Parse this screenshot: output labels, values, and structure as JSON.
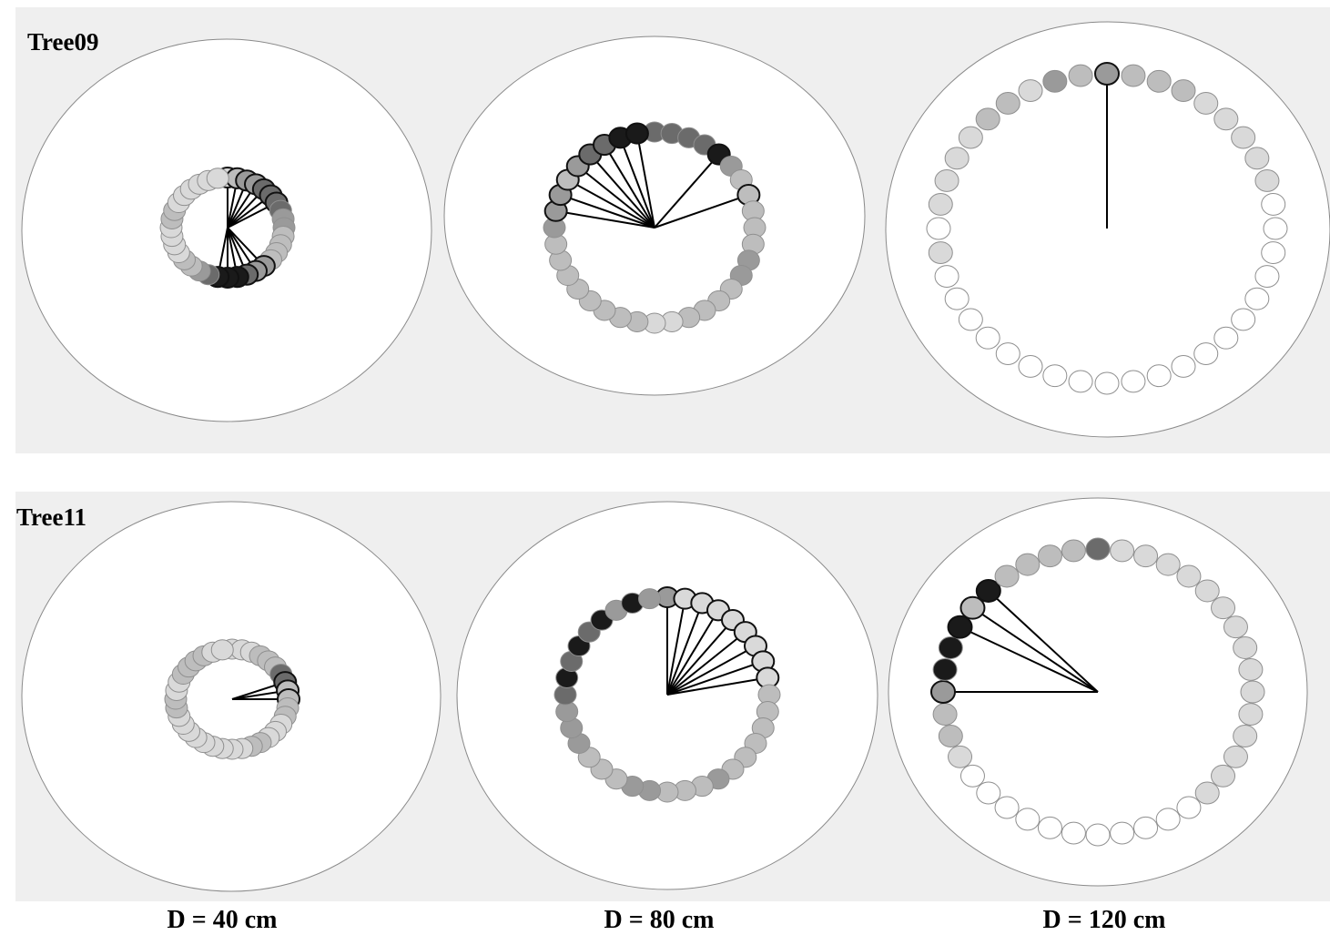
{
  "tree_labels": [
    "Tree09",
    "Tree11"
  ],
  "column_labels": [
    "D = 40 cm",
    "D = 80 cm",
    "D = 120 cm"
  ],
  "colors": {
    "panel_background": "#efefef",
    "plot_background": "#ffffff",
    "plot_border": "#8a8a8a",
    "line": "#000000"
  },
  "panels": [
    {
      "tree": "Tree09",
      "diameter": "D = 40 cm",
      "n": 36,
      "shades": [
        1,
        2,
        3,
        3,
        4,
        4,
        4,
        4,
        3,
        3,
        2,
        2,
        2,
        2,
        3,
        3,
        4,
        5,
        5,
        5,
        4,
        3,
        2,
        2,
        1,
        1,
        1,
        1,
        2,
        2,
        1,
        1,
        1,
        1,
        1,
        1
      ],
      "lines": [
        0,
        1,
        2,
        3,
        4,
        5,
        6,
        14,
        15,
        16,
        17,
        18,
        19
      ]
    },
    {
      "tree": "Tree09",
      "diameter": "D = 80 cm",
      "n": 36,
      "shades": [
        4,
        4,
        4,
        4,
        5,
        3,
        2,
        2,
        2,
        2,
        2,
        3,
        3,
        2,
        2,
        2,
        2,
        1,
        1,
        2,
        2,
        2,
        2,
        2,
        2,
        2,
        2,
        3,
        3,
        3,
        2,
        3,
        4,
        4,
        5,
        5
      ],
      "lines": [
        4,
        7,
        28,
        29,
        30,
        31,
        32,
        33,
        34,
        35
      ]
    },
    {
      "tree": "Tree09",
      "diameter": "D = 120 cm",
      "n": 40,
      "shades": [
        3,
        2,
        2,
        2,
        1,
        1,
        1,
        1,
        1,
        0,
        0,
        0,
        0,
        0,
        0,
        0,
        0,
        0,
        0,
        0,
        0,
        0,
        0,
        0,
        0,
        0,
        0,
        0,
        0,
        1,
        0,
        1,
        1,
        1,
        1,
        2,
        2,
        1,
        3,
        2
      ],
      "lines": [
        0
      ]
    },
    {
      "tree": "Tree11",
      "diameter": "D = 40 cm",
      "n": 36,
      "shades": [
        1,
        1,
        1,
        2,
        2,
        2,
        4,
        4,
        2,
        2,
        2,
        2,
        1,
        1,
        1,
        2,
        2,
        1,
        1,
        1,
        1,
        1,
        1,
        1,
        1,
        1,
        2,
        2,
        1,
        1,
        2,
        2,
        2,
        2,
        1,
        1
      ],
      "lines": [
        7,
        8,
        9
      ]
    },
    {
      "tree": "Tree11",
      "diameter": "D = 80 cm",
      "n": 36,
      "shades": [
        3,
        1,
        1,
        1,
        1,
        1,
        1,
        1,
        1,
        2,
        2,
        2,
        2,
        2,
        2,
        3,
        2,
        2,
        2,
        3,
        3,
        2,
        2,
        2,
        3,
        3,
        3,
        4,
        5,
        4,
        5,
        4,
        5,
        3,
        5,
        3
      ],
      "lines": [
        0,
        1,
        2,
        3,
        4,
        5,
        6,
        7,
        8
      ]
    },
    {
      "tree": "Tree11",
      "diameter": "D = 120 cm",
      "n": 40,
      "shades": [
        4,
        1,
        1,
        1,
        1,
        1,
        1,
        1,
        1,
        1,
        1,
        1,
        1,
        1,
        1,
        1,
        0,
        0,
        0,
        0,
        0,
        0,
        0,
        0,
        0,
        0,
        0,
        1,
        2,
        2,
        3,
        5,
        5,
        5,
        2,
        5,
        2,
        2,
        2,
        2
      ],
      "lines": [
        30,
        33,
        34,
        35
      ]
    }
  ]
}
